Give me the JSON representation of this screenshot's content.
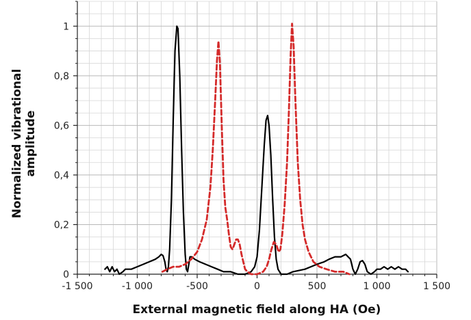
{
  "chart_data": {
    "type": "line",
    "title": "",
    "xlabel": "External magnetic field along HA (Oe)",
    "ylabel": [
      "Normalized vibrational",
      "amplitude"
    ],
    "xlim": [
      -1500,
      1500
    ],
    "ylim": [
      0,
      1.1
    ],
    "x_major_ticks": [
      -1500,
      -1000,
      -500,
      0,
      500,
      1000,
      1500
    ],
    "x_tick_labels": [
      "-1 500",
      "-1 000",
      "-500",
      "0",
      "500",
      "1 000",
      "1 500"
    ],
    "x_minor_step": 100,
    "y_major_ticks": [
      0,
      0.2,
      0.4,
      0.6,
      0.8,
      1.0
    ],
    "y_tick_labels": [
      "0",
      "0,2",
      "0,4",
      "0,6",
      "0,8",
      "1"
    ],
    "y_minor_step": 0.05,
    "grid": true,
    "legend": "none",
    "series": [
      {
        "style": "solid",
        "color": "#000000",
        "points": [
          [
            -1270,
            0.02
          ],
          [
            -1250,
            0.03
          ],
          [
            -1230,
            0.01
          ],
          [
            -1210,
            0.03
          ],
          [
            -1190,
            0.01
          ],
          [
            -1170,
            0.02
          ],
          [
            -1150,
            0.0
          ],
          [
            -1120,
            0.01
          ],
          [
            -1100,
            0.02
          ],
          [
            -1050,
            0.02
          ],
          [
            -1000,
            0.03
          ],
          [
            -950,
            0.04
          ],
          [
            -900,
            0.05
          ],
          [
            -850,
            0.06
          ],
          [
            -820,
            0.07
          ],
          [
            -800,
            0.08
          ],
          [
            -785,
            0.075
          ],
          [
            -770,
            0.05
          ],
          [
            -760,
            0.02
          ],
          [
            -750,
            0.01
          ],
          [
            -740,
            0.03
          ],
          [
            -730,
            0.1
          ],
          [
            -715,
            0.3
          ],
          [
            -700,
            0.62
          ],
          [
            -685,
            0.9
          ],
          [
            -670,
            1.0
          ],
          [
            -660,
            0.99
          ],
          [
            -645,
            0.8
          ],
          [
            -630,
            0.5
          ],
          [
            -615,
            0.25
          ],
          [
            -600,
            0.08
          ],
          [
            -590,
            0.02
          ],
          [
            -580,
            0.01
          ],
          [
            -570,
            0.04
          ],
          [
            -560,
            0.07
          ],
          [
            -545,
            0.07
          ],
          [
            -520,
            0.06
          ],
          [
            -480,
            0.05
          ],
          [
            -430,
            0.04
          ],
          [
            -380,
            0.03
          ],
          [
            -330,
            0.02
          ],
          [
            -280,
            0.01
          ],
          [
            -220,
            0.01
          ],
          [
            -160,
            0.0
          ],
          [
            -100,
            0.0
          ],
          [
            -50,
            0.01
          ],
          [
            -20,
            0.03
          ],
          [
            0,
            0.07
          ],
          [
            20,
            0.18
          ],
          [
            40,
            0.35
          ],
          [
            60,
            0.52
          ],
          [
            75,
            0.62
          ],
          [
            88,
            0.64
          ],
          [
            100,
            0.6
          ],
          [
            115,
            0.48
          ],
          [
            130,
            0.3
          ],
          [
            145,
            0.15
          ],
          [
            160,
            0.06
          ],
          [
            175,
            0.02
          ],
          [
            200,
            0.0
          ],
          [
            250,
            0.0
          ],
          [
            300,
            0.01
          ],
          [
            400,
            0.02
          ],
          [
            500,
            0.04
          ],
          [
            560,
            0.05
          ],
          [
            600,
            0.06
          ],
          [
            650,
            0.07
          ],
          [
            700,
            0.07
          ],
          [
            740,
            0.08
          ],
          [
            780,
            0.06
          ],
          [
            800,
            0.02
          ],
          [
            820,
            0.0
          ],
          [
            840,
            0.02
          ],
          [
            860,
            0.05
          ],
          [
            880,
            0.055
          ],
          [
            900,
            0.04
          ],
          [
            920,
            0.01
          ],
          [
            950,
            0.0
          ],
          [
            980,
            0.01
          ],
          [
            1000,
            0.02
          ],
          [
            1030,
            0.02
          ],
          [
            1060,
            0.03
          ],
          [
            1090,
            0.02
          ],
          [
            1120,
            0.03
          ],
          [
            1150,
            0.02
          ],
          [
            1180,
            0.03
          ],
          [
            1210,
            0.02
          ],
          [
            1240,
            0.02
          ],
          [
            1260,
            0.01
          ]
        ]
      },
      {
        "style": "dashed",
        "color": "#d42a2a",
        "points": [
          [
            -790,
            0.01
          ],
          [
            -750,
            0.02
          ],
          [
            -700,
            0.03
          ],
          [
            -650,
            0.03
          ],
          [
            -600,
            0.04
          ],
          [
            -550,
            0.06
          ],
          [
            -500,
            0.09
          ],
          [
            -460,
            0.14
          ],
          [
            -420,
            0.22
          ],
          [
            -390,
            0.35
          ],
          [
            -370,
            0.5
          ],
          [
            -350,
            0.7
          ],
          [
            -335,
            0.86
          ],
          [
            -322,
            0.94
          ],
          [
            -310,
            0.85
          ],
          [
            -295,
            0.6
          ],
          [
            -280,
            0.38
          ],
          [
            -265,
            0.27
          ],
          [
            -250,
            0.22
          ],
          [
            -235,
            0.16
          ],
          [
            -220,
            0.11
          ],
          [
            -205,
            0.1
          ],
          [
            -190,
            0.12
          ],
          [
            -175,
            0.14
          ],
          [
            -160,
            0.14
          ],
          [
            -145,
            0.12
          ],
          [
            -130,
            0.08
          ],
          [
            -115,
            0.05
          ],
          [
            -100,
            0.02
          ],
          [
            -80,
            0.01
          ],
          [
            -50,
            0.0
          ],
          [
            0,
            0.0
          ],
          [
            50,
            0.01
          ],
          [
            80,
            0.03
          ],
          [
            100,
            0.06
          ],
          [
            120,
            0.1
          ],
          [
            140,
            0.13
          ],
          [
            160,
            0.12
          ],
          [
            180,
            0.09
          ],
          [
            195,
            0.1
          ],
          [
            210,
            0.16
          ],
          [
            230,
            0.28
          ],
          [
            250,
            0.45
          ],
          [
            265,
            0.65
          ],
          [
            280,
            0.88
          ],
          [
            292,
            1.01
          ],
          [
            305,
            0.92
          ],
          [
            320,
            0.7
          ],
          [
            340,
            0.45
          ],
          [
            360,
            0.3
          ],
          [
            380,
            0.2
          ],
          [
            400,
            0.14
          ],
          [
            430,
            0.09
          ],
          [
            470,
            0.05
          ],
          [
            520,
            0.03
          ],
          [
            580,
            0.02
          ],
          [
            650,
            0.01
          ],
          [
            720,
            0.01
          ],
          [
            770,
            0.0
          ]
        ]
      }
    ]
  }
}
